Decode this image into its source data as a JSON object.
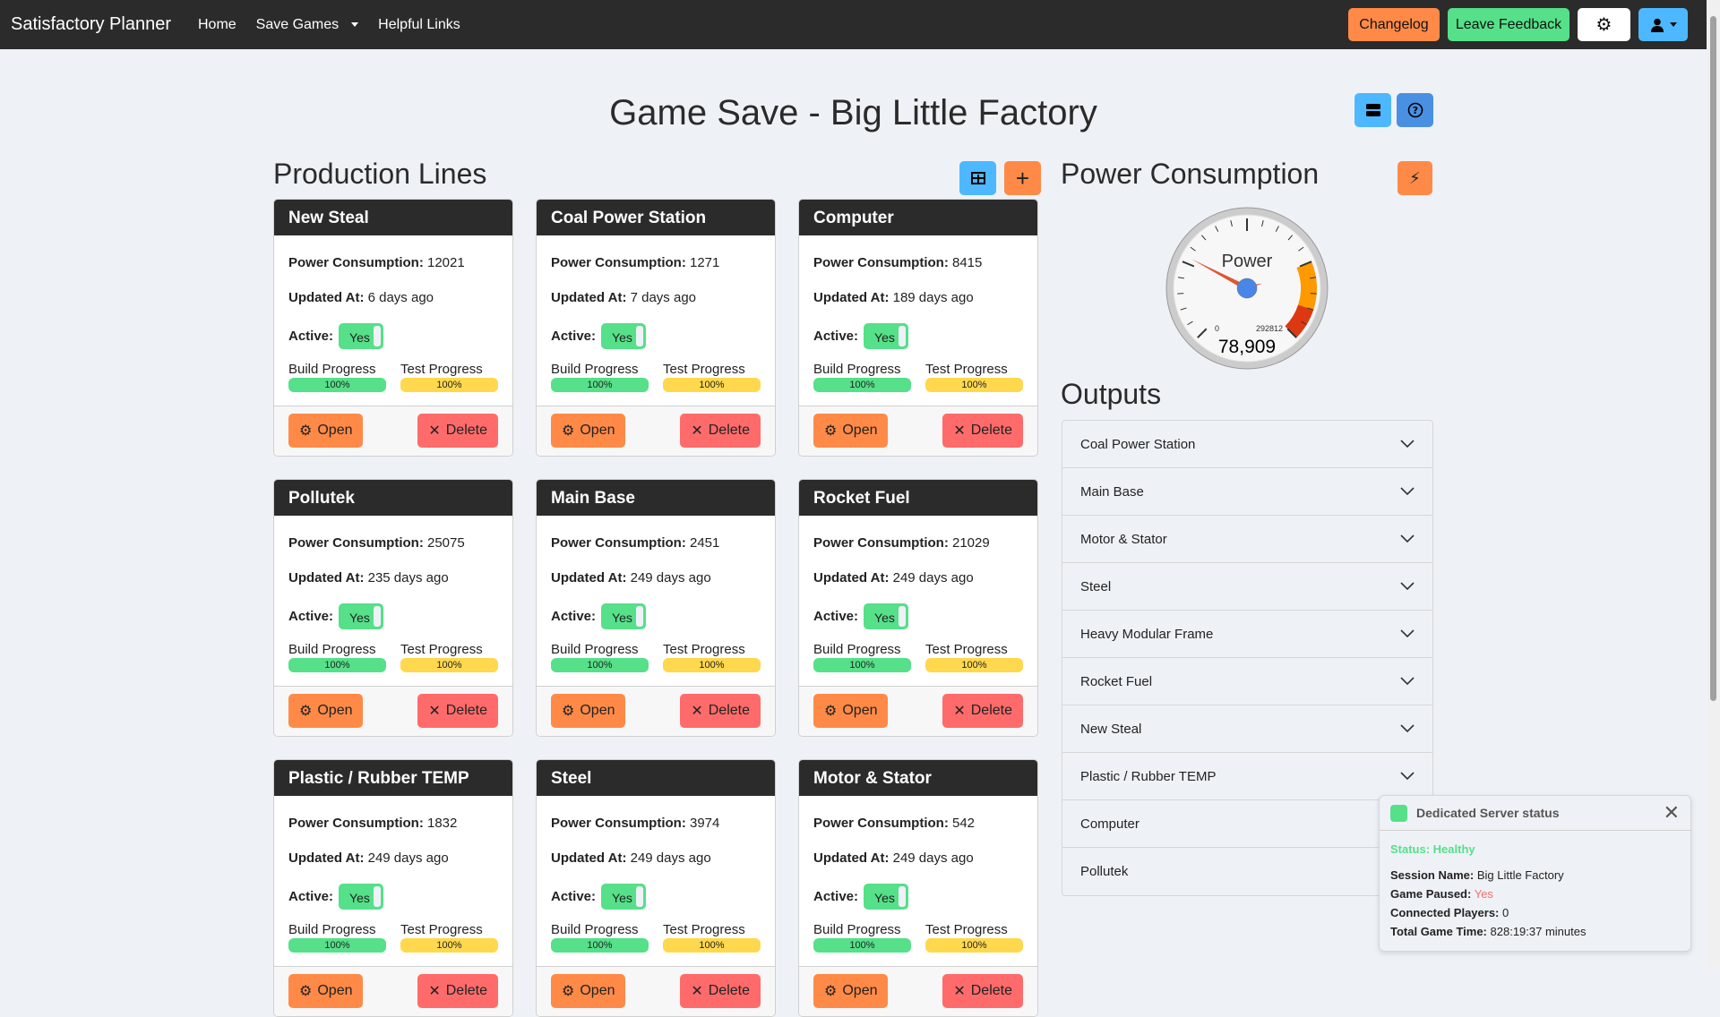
{
  "nav": {
    "brand": "Satisfactory Planner",
    "home": "Home",
    "save_games": "Save Games",
    "helpful_links": "Helpful Links",
    "changelog": "Changelog",
    "feedback": "Leave Feedback"
  },
  "page_title": "Game Save - Big Little Factory",
  "production": {
    "heading": "Production Lines",
    "labels": {
      "power": "Power Consumption:",
      "updated": "Updated At:",
      "active": "Active:",
      "build": "Build Progress",
      "test": "Test Progress",
      "open": "Open",
      "delete": "Delete"
    },
    "lines": [
      {
        "name": "New Steal",
        "power": "12021",
        "updated": "6 days ago",
        "active": "Yes",
        "build": "100%",
        "test": "100%"
      },
      {
        "name": "Coal Power Station",
        "power": "1271",
        "updated": "7 days ago",
        "active": "Yes",
        "build": "100%",
        "test": "100%"
      },
      {
        "name": "Computer",
        "power": "8415",
        "updated": "189 days ago",
        "active": "Yes",
        "build": "100%",
        "test": "100%"
      },
      {
        "name": "Pollutek",
        "power": "25075",
        "updated": "235 days ago",
        "active": "Yes",
        "build": "100%",
        "test": "100%"
      },
      {
        "name": "Main Base",
        "power": "2451",
        "updated": "249 days ago",
        "active": "Yes",
        "build": "100%",
        "test": "100%"
      },
      {
        "name": "Rocket Fuel",
        "power": "21029",
        "updated": "249 days ago",
        "active": "Yes",
        "build": "100%",
        "test": "100%"
      },
      {
        "name": "Plastic / Rubber TEMP",
        "power": "1832",
        "updated": "249 days ago",
        "active": "Yes",
        "build": "100%",
        "test": "100%"
      },
      {
        "name": "Steel",
        "power": "3974",
        "updated": "249 days ago",
        "active": "Yes",
        "build": "100%",
        "test": "100%"
      },
      {
        "name": "Motor & Stator",
        "power": "542",
        "updated": "249 days ago",
        "active": "Yes",
        "build": "100%",
        "test": "100%"
      }
    ]
  },
  "power": {
    "heading": "Power Consumption",
    "gauge_label": "Power",
    "min": "0",
    "max": "292812",
    "value_text": "78,909",
    "value": 78909,
    "max_value": 292812
  },
  "outputs": {
    "heading": "Outputs",
    "items": [
      "Coal Power Station",
      "Main Base",
      "Motor & Stator",
      "Steel",
      "Heavy Modular Frame",
      "Rocket Fuel",
      "New Steal",
      "Plastic / Rubber TEMP",
      "Computer",
      "Pollutek"
    ]
  },
  "server": {
    "title": "Dedicated Server status",
    "status": "Status: Healthy",
    "session_label": "Session Name:",
    "session": "Big Little Factory",
    "paused_label": "Game Paused:",
    "paused": "Yes",
    "players_label": "Connected Players:",
    "players": "0",
    "time_label": "Total Game Time:",
    "time": "828:19:37 minutes"
  },
  "colors": {
    "navbar": "#2b2b2b",
    "orange": "#ff8a47",
    "green": "#55e089",
    "blue": "#4db8ff",
    "red": "#ff6b6b",
    "yellow": "#ffd84d"
  }
}
